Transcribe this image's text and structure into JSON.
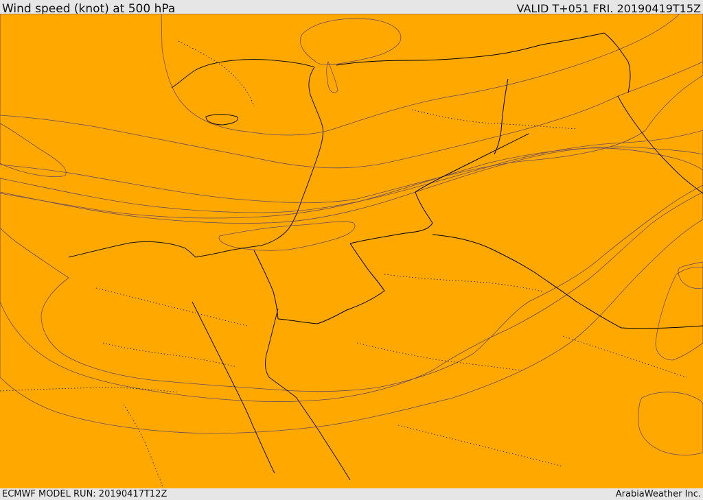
{
  "header": {
    "title": "Wind speed (knot) at 500 hPa",
    "valid": "VALID T+051 FRI. 20190419T15Z"
  },
  "footer": {
    "model_run": "ECMWF MODEL RUN: 20190417T12Z",
    "credit": "ArabiaWeather Inc."
  },
  "map": {
    "field": "wind-speed",
    "palette": {
      "peach": "#fdd8a6",
      "yellow": "#ffff00",
      "light_gold": "#ffe100",
      "gold": "#ffc400",
      "amber": "#ffa800",
      "orange": "#ff8c00",
      "dark_orange": "#ff6d00",
      "red_orange": "#ff5500",
      "red": "#ff3d1e"
    }
  }
}
